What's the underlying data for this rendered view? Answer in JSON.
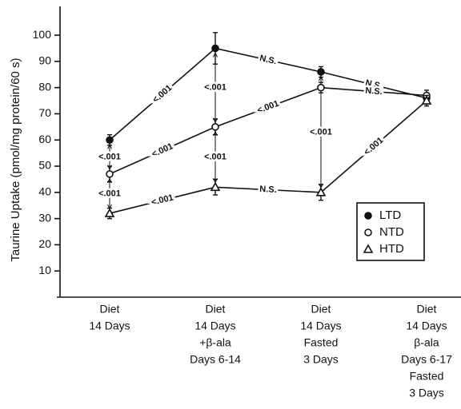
{
  "chart_data": {
    "type": "line",
    "ylabel": "Taurine Uptake (pmol/mg protein/60 s)",
    "categories": [
      [
        "Diet",
        "14 Days"
      ],
      [
        "Diet",
        "14 Days",
        "+β-ala",
        "Days 6-14"
      ],
      [
        "Diet",
        "14 Days",
        "Fasted",
        "3 Days"
      ],
      [
        "Diet",
        "14 Days",
        "β-ala",
        "Days 6-17",
        "Fasted",
        "3 Days"
      ]
    ],
    "series": [
      {
        "name": "LTD",
        "marker": "circle-filled",
        "color": "#111111",
        "values": [
          60,
          95,
          86,
          76
        ],
        "errors": [
          2,
          6,
          2,
          2
        ]
      },
      {
        "name": "NTD",
        "marker": "circle-open",
        "color": "#111111",
        "values": [
          47,
          65,
          80,
          77
        ],
        "errors": [
          3,
          3,
          2,
          2
        ]
      },
      {
        "name": "HTD",
        "marker": "triangle-open",
        "color": "#111111",
        "values": [
          32,
          42,
          40,
          75
        ],
        "errors": [
          2,
          3,
          3,
          2
        ]
      }
    ],
    "ylim": [
      0,
      111
    ],
    "yticks": [
      10,
      20,
      30,
      40,
      50,
      60,
      70,
      80,
      90,
      100
    ],
    "annotations": [
      "<.001",
      "N.S.",
      "N.S.",
      "<.001",
      "<.001",
      "N.S.",
      "<.001",
      "N.S.",
      "<.001",
      "<.001",
      "<.001",
      "<.001",
      "<.001",
      "<.001"
    ]
  }
}
